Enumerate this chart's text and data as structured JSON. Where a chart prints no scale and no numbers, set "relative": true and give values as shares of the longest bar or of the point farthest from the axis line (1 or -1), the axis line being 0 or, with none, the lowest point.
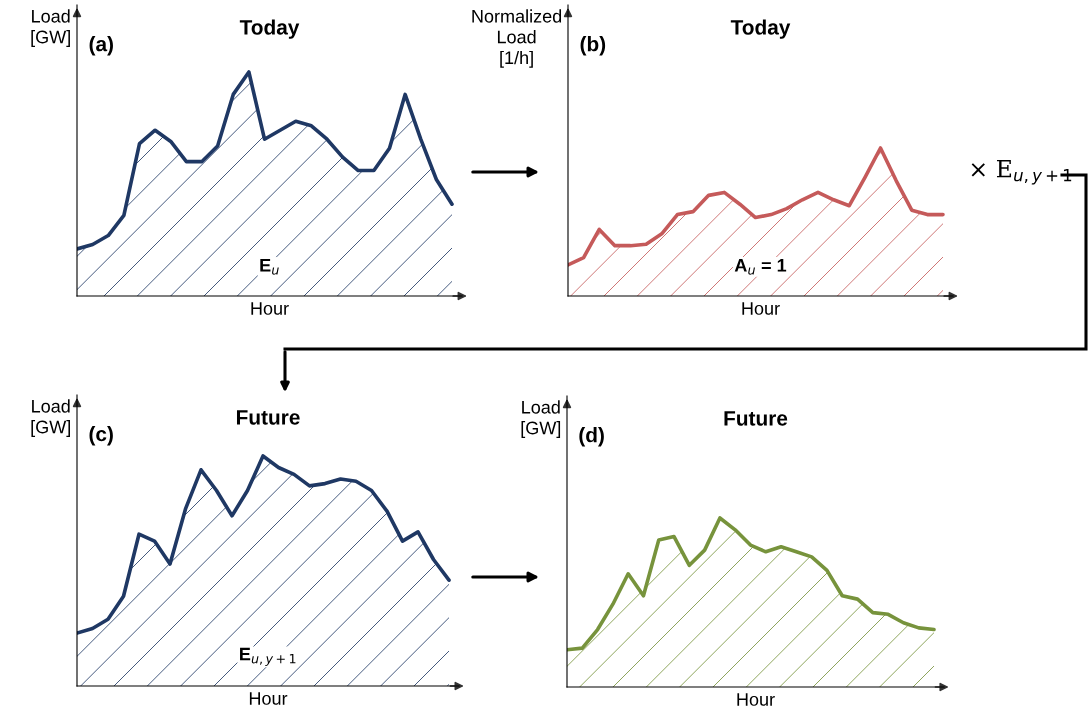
{
  "chart_data": [
    {
      "type": "area",
      "title": "Today",
      "xlabel": "Hour",
      "ylabel": "Load\n[GW]",
      "relative": true,
      "annotations": [
        "(a)",
        "E$_{u}$"
      ],
      "categories": [
        null,
        null,
        null,
        null,
        null,
        null,
        null,
        null,
        null,
        null,
        null,
        null,
        null,
        null,
        null,
        null,
        null,
        null,
        null,
        null,
        null,
        null,
        null,
        null,
        null
      ],
      "series": [
        {
          "color": "#1f3864",
          "values": [
            0.21,
            0.23,
            0.27,
            0.36,
            0.68,
            0.74,
            0.69,
            0.6,
            0.6,
            0.67,
            0.9,
            1.0,
            0.7,
            0.74,
            0.78,
            0.76,
            0.7,
            0.62,
            0.56,
            0.56,
            0.66,
            0.9,
            0.7,
            0.52,
            0.41
          ]
        }
      ]
    },
    {
      "type": "area",
      "title": "Today",
      "xlabel": "Hour",
      "ylabel": "Normalized\nLoad\n[1/h]",
      "relative": true,
      "annotations": [
        "(b)",
        "A$_{u}$ = 1",
        "× E$_{u,y+1}$"
      ],
      "categories": [
        null,
        null,
        null,
        null,
        null,
        null,
        null,
        null,
        null,
        null,
        null,
        null,
        null,
        null,
        null,
        null,
        null,
        null,
        null,
        null,
        null,
        null,
        null,
        null,
        null
      ],
      "series": [
        {
          "color": "#c55a5a",
          "values": [
            0.21,
            0.26,
            0.45,
            0.34,
            0.34,
            0.35,
            0.42,
            0.55,
            0.57,
            0.68,
            0.7,
            0.62,
            0.53,
            0.55,
            0.59,
            0.65,
            0.7,
            0.65,
            0.61,
            0.8,
            1.0,
            0.78,
            0.58,
            0.55,
            0.55
          ]
        }
      ]
    },
    {
      "type": "area",
      "title": "Future",
      "xlabel": "Hour",
      "ylabel": "Load\n[GW]",
      "relative": true,
      "annotations": [
        "(c)",
        "E$_{u,y+1}$"
      ],
      "categories": [
        null,
        null,
        null,
        null,
        null,
        null,
        null,
        null,
        null,
        null,
        null,
        null,
        null,
        null,
        null,
        null,
        null,
        null,
        null,
        null,
        null,
        null,
        null,
        null,
        null
      ],
      "series": [
        {
          "color": "#1f3864",
          "values": [
            0.23,
            0.25,
            0.29,
            0.39,
            0.66,
            0.63,
            0.53,
            0.77,
            0.94,
            0.85,
            0.74,
            0.85,
            1.0,
            0.95,
            0.92,
            0.87,
            0.88,
            0.9,
            0.89,
            0.85,
            0.76,
            0.63,
            0.67,
            0.55,
            0.46
          ]
        }
      ]
    },
    {
      "type": "area",
      "title": "Future",
      "xlabel": "Hour",
      "ylabel": "Load\n[GW]",
      "relative": true,
      "annotations": [
        "(d)"
      ],
      "categories": [
        null,
        null,
        null,
        null,
        null,
        null,
        null,
        null,
        null,
        null,
        null,
        null,
        null,
        null,
        null,
        null,
        null,
        null,
        null,
        null,
        null,
        null,
        null,
        null,
        null
      ],
      "series": [
        {
          "color": "#77933c",
          "values": [
            0.22,
            0.23,
            0.34,
            0.49,
            0.67,
            0.54,
            0.87,
            0.89,
            0.72,
            0.81,
            1.0,
            0.93,
            0.84,
            0.8,
            0.83,
            0.8,
            0.77,
            0.69,
            0.54,
            0.52,
            0.44,
            0.43,
            0.38,
            0.35,
            0.34
          ]
        }
      ]
    }
  ]
}
